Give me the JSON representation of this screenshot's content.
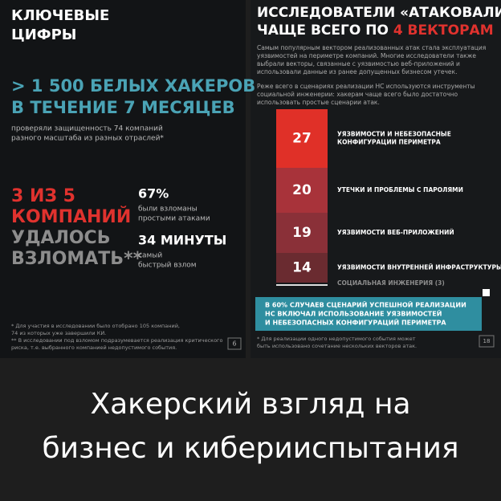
{
  "left_slide": {
    "heading": [
      "КЛЮЧЕВЫЕ",
      "ЦИФРЫ"
    ],
    "headline": [
      "> 1 500 БЕЛЫХ ХАКЕРОВ",
      "В ТЕЧЕНИЕ 7 МЕСЯЦЕВ"
    ],
    "headline_note": [
      "проверяли защищенность 74 компаний",
      "разного масштаба из разных отраслей*"
    ],
    "big_stat": [
      "3 ИЗ 5",
      "КОМПАНИЙ",
      "УДАЛОСЬ",
      "ВЗЛОМАТЬ**"
    ],
    "stats": [
      {
        "value": "67%",
        "text": [
          "были взломаны",
          "простыми атаками"
        ]
      },
      {
        "value": "34 МИНУТЫ",
        "text": [
          "самый",
          "быстрый взлом"
        ]
      }
    ],
    "footnotes": [
      "* Для участия в исследовании было отобрано 105 компаний,",
      "74 из которых уже завершили КИ.",
      "** В исследовании под взломом подразумевается реализация критического",
      "риска, т.е. выбранного компанией недопустимого события."
    ],
    "page": "6"
  },
  "right_slide": {
    "title": [
      "ИССЛЕДОВАТЕЛИ «АТАКОВАЛИ»",
      "ЧАЩЕ ВСЕГО ПО ",
      "4 ВЕКТОРАМ"
    ],
    "paragraphs": [
      "Самым популярным вектором реализованных атак стала эксплуатация",
      "уязвимостей на периметре компаний. Многие исследователи также",
      "выбрали векторы, связанные с уязвимостью веб-приложений и",
      "использовали данные из ранее допущенных бизнесом утечек.",
      "Реже всего в сценариях реализации НС используются инструменты",
      "социальной инженерии: хакерам чаще всего было достаточно",
      "использовать простые сценарии атак."
    ],
    "vectors": [
      {
        "number": "27",
        "label": [
          "УЯЗВИМОСТИ И НЕБЕЗОПАСНЫЕ",
          "КОНФИГУРАЦИИ ПЕРИМЕТРА"
        ]
      },
      {
        "number": "20",
        "label": [
          "УТЕЧКИ И ПРОБЛЕМЫ С ПАРОЛЯМИ"
        ]
      },
      {
        "number": "19",
        "label": [
          "УЯЗВИМОСТИ ВЕБ-ПРИЛОЖЕНИЙ"
        ]
      },
      {
        "number": "14",
        "label": [
          "УЯЗВИМОСТИ ВНУТРЕННЕЙ ИНФРАСТРУКТУРЫ"
        ]
      }
    ],
    "social": "СОЦИАЛЬНАЯ ИНЖЕНЕРИЯ (3)",
    "callout": [
      "В 60% СЛУЧАЕВ СЦЕНАРИЙ УСПЕШНОЙ РЕАЛИЗАЦИИ",
      "НС ВКЛЮЧАЛ ИСПОЛЬЗОВАНИЕ УЯЗВИМОСТЕЙ",
      "И НЕБЕЗОПАСНЫХ КОНФИГУРАЦИЙ ПЕРИМЕТРА"
    ],
    "footnote": [
      "* Для реализации одного недопустимого события может",
      "быть использовано сочетание нескольких векторов атак."
    ],
    "page": "18"
  },
  "caption": [
    "Хакерский взгляд на",
    "бизнес и киберииспытания"
  ]
}
